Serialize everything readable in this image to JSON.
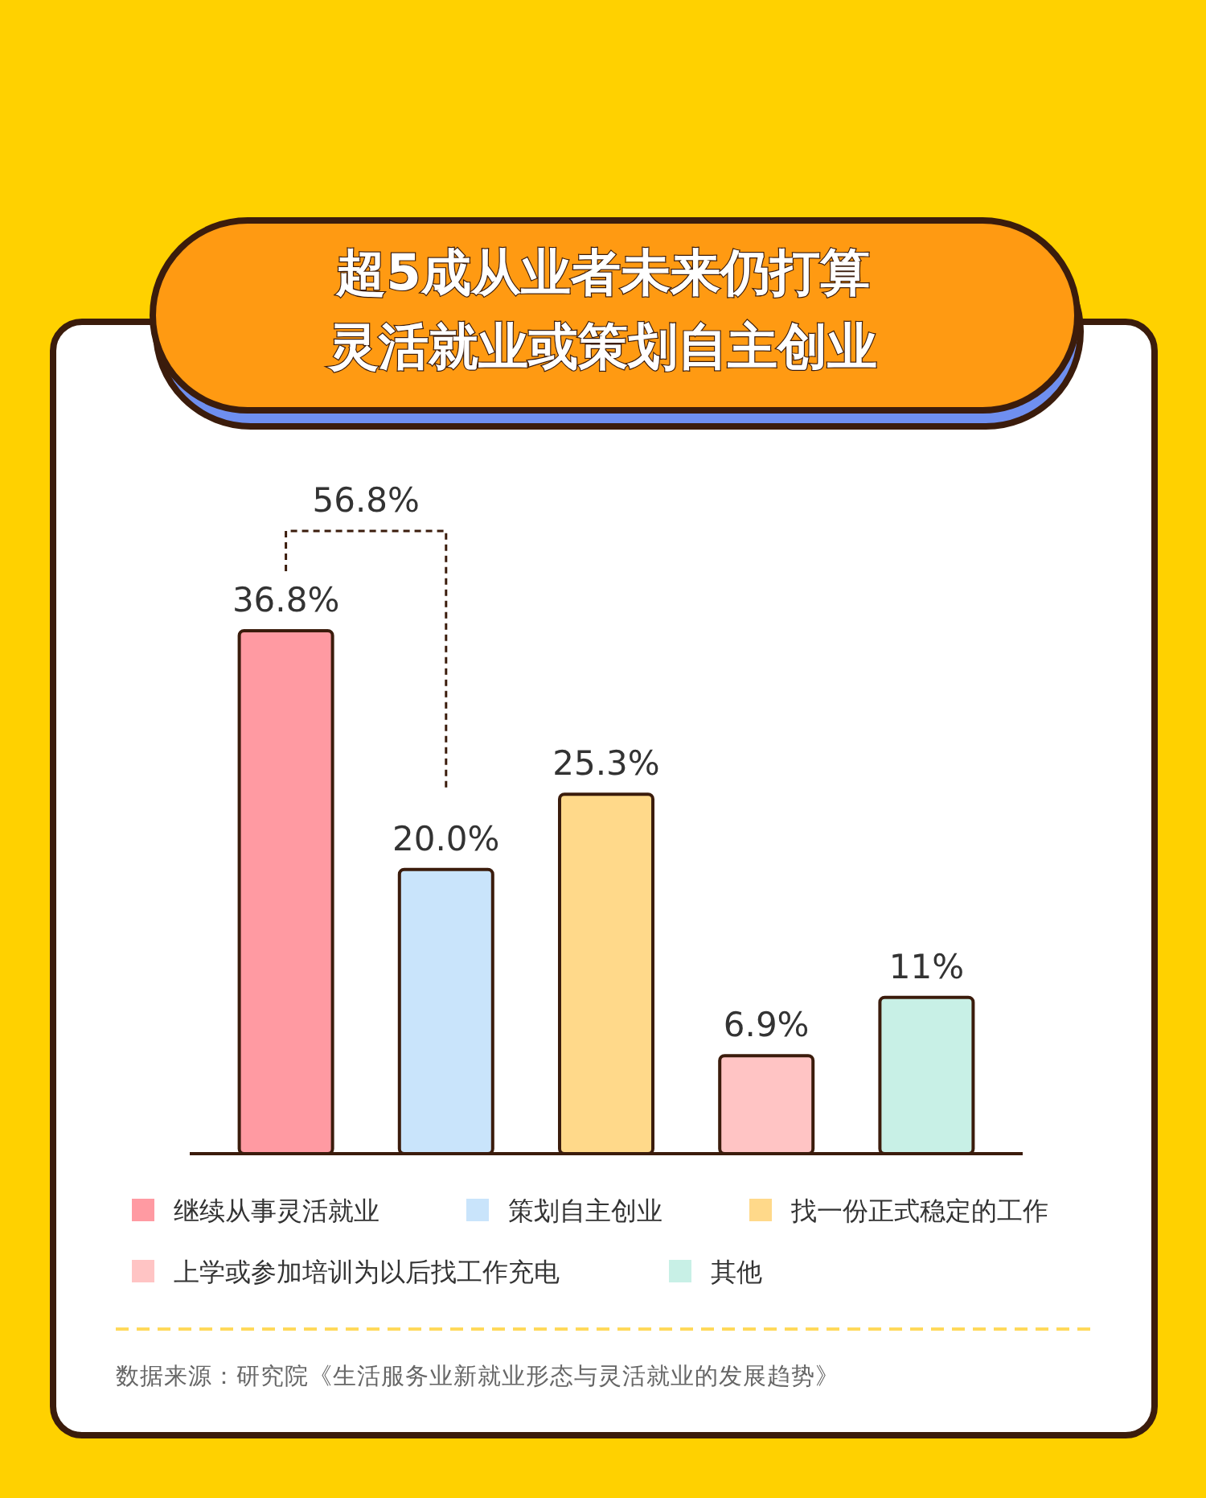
{
  "chart_data": {
    "type": "bar",
    "title": "超5成从业者未来仍打算灵活就业或策划自主创业",
    "categories": [
      null,
      null,
      null,
      null,
      null
    ],
    "stacked": true,
    "series": [
      {
        "name": "继续从事灵活就业",
        "color": "#ff9aa2",
        "values": [
          36.8,
          null,
          null,
          null,
          null
        ],
        "value_labels": [
          "36.8%",
          null,
          null,
          null,
          null
        ]
      },
      {
        "name": "策划自主创业",
        "color": "#c9e4fb",
        "values": [
          null,
          20.0,
          null,
          null,
          null
        ],
        "value_labels": [
          null,
          "20.0%",
          null,
          null,
          null
        ]
      },
      {
        "name": "找一份正式稳定的工作",
        "color": "#ffd98a",
        "values": [
          null,
          null,
          25.3,
          null,
          null
        ],
        "value_labels": [
          null,
          null,
          "25.3%",
          null,
          null
        ]
      },
      {
        "name": "上学或参加培训为以后找工作充电",
        "color": "#ffc4c4",
        "values": [
          null,
          null,
          null,
          6.9,
          null
        ],
        "value_labels": [
          null,
          null,
          null,
          "6.9%",
          null
        ]
      },
      {
        "name": "其他",
        "color": "#c8f0e6",
        "values": [
          null,
          null,
          null,
          null,
          11
        ],
        "value_labels": [
          null,
          null,
          null,
          null,
          "11%"
        ]
      }
    ],
    "annotations": [
      "56.8%",
      "数据来源：研究院《生活服务业新就业形态与灵活就业的发展趋势》"
    ],
    "legend": "bottom"
  }
}
